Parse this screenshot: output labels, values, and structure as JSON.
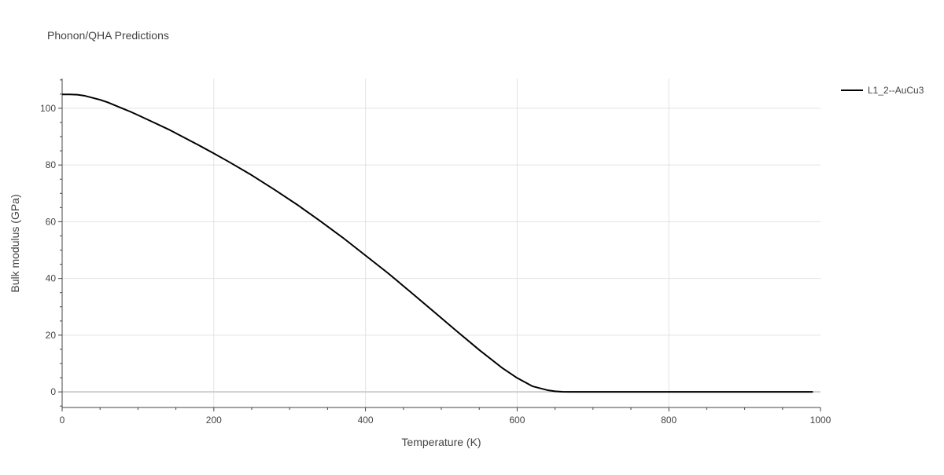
{
  "chart_data": {
    "type": "line",
    "title": "Phonon/QHA Predictions",
    "xlabel": "Temperature (K)",
    "ylabel": "Bulk modulus (GPa)",
    "xlim": [
      0,
      1000
    ],
    "ylim": [
      -5.5,
      110.5
    ],
    "x_ticks": [
      0,
      200,
      400,
      600,
      800,
      1000
    ],
    "y_ticks": [
      0,
      20,
      40,
      60,
      80,
      100
    ],
    "x_tick_labels": [
      "0",
      "200",
      "400",
      "600",
      "800",
      "1000"
    ],
    "y_tick_labels": [
      "0",
      "20",
      "40",
      "60",
      "80",
      "100"
    ],
    "grid": true,
    "legend_position": "top-right",
    "series": [
      {
        "name": "L1_2--AuCu3",
        "color": "#000000",
        "x": [
          0,
          10,
          20,
          30,
          40,
          50,
          60,
          70,
          80,
          90,
          100,
          120,
          140,
          160,
          180,
          200,
          220,
          250,
          280,
          310,
          340,
          370,
          400,
          430,
          460,
          490,
          520,
          550,
          580,
          600,
          620,
          640,
          650,
          660,
          670,
          700,
          750,
          800,
          850,
          900,
          950,
          990
        ],
        "y": [
          104.9,
          104.9,
          104.8,
          104.4,
          103.7,
          103.0,
          102.1,
          101.0,
          99.9,
          98.8,
          97.6,
          95.1,
          92.6,
          89.8,
          87.0,
          84.1,
          81.1,
          76.4,
          71.3,
          66.0,
          60.3,
          54.4,
          48.1,
          41.8,
          35.1,
          28.3,
          21.5,
          14.8,
          8.5,
          4.9,
          2.0,
          0.6,
          0.2,
          0.05,
          0.0,
          0.0,
          0.0,
          0.0,
          0.0,
          0.0,
          0.0,
          0.0
        ]
      }
    ]
  }
}
